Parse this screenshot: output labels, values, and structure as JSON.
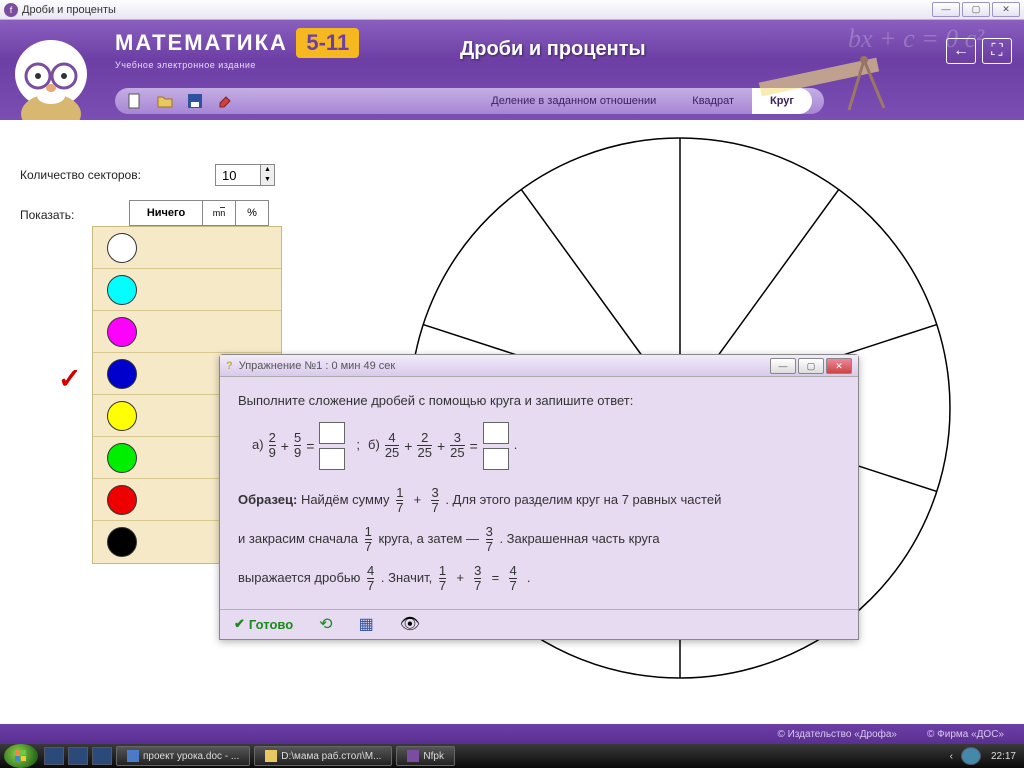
{
  "os_title": "Дроби и проценты",
  "app": {
    "logo_word": "МАТЕМАТИКА",
    "logo_badge": "5-11",
    "logo_sub": "Учебное электронное издание",
    "header_title": "Дроби и проценты",
    "equation_bg": "bx + c = 0        c²"
  },
  "toolbar": {
    "tab1": "Деление в заданном отношении",
    "tab2": "Квадрат",
    "tab3": "Круг"
  },
  "controls": {
    "sector_label": "Количество секторов:",
    "sector_value": "10",
    "show_label": "Показать:",
    "show_tab1": "Ничего",
    "show_tab3": "%"
  },
  "palette_colors": [
    "#ffffff",
    "#00ffff",
    "#ff00ff",
    "#0000cc",
    "#ffff00",
    "#00ee00",
    "#ee0000",
    "#000000"
  ],
  "circle": {
    "sectors": 10
  },
  "exercise": {
    "title": "Упражнение №1 : 0 мин  49 сек",
    "instruction": "Выполните сложение дробей с помощью круга и запишите ответ:",
    "a_label": "а)",
    "b_label": "б)",
    "a": {
      "n1": "2",
      "d1": "9",
      "n2": "5",
      "d2": "9"
    },
    "b": {
      "n1": "4",
      "d1": "25",
      "n2": "2",
      "d2": "25",
      "n3": "3",
      "d3": "25"
    },
    "sample_label": "Образец:",
    "s1a": "Найдём сумму",
    "s1_f1n": "1",
    "s1_f1d": "7",
    "s1_f2n": "3",
    "s1_f2d": "7",
    "s1b": ". Для этого разделим круг на 7 равных частей",
    "s2a": "и закрасим сначала",
    "s2_f1n": "1",
    "s2_f1d": "7",
    "s2b": "круга, а затем —",
    "s2_f2n": "3",
    "s2_f2d": "7",
    "s2c": ". Закрашенная часть круга",
    "s3a": "выражается дробью",
    "s3_f1n": "4",
    "s3_f1d": "7",
    "s3b": ". Значит,",
    "s3_f2n": "1",
    "s3_f2d": "7",
    "s3_f3n": "3",
    "s3_f3d": "7",
    "s3_f4n": "4",
    "s3_f4d": "7",
    "ready": "Готово"
  },
  "footer": {
    "pub": "© Издательство «Дрофа»",
    "firm": "© Фирма «ДОС»"
  },
  "taskbar": {
    "t1": "проект урока.doc - ...",
    "t2": "D:\\мама раб.стол\\М...",
    "t3": "Nfpk",
    "clock": "22:17"
  }
}
